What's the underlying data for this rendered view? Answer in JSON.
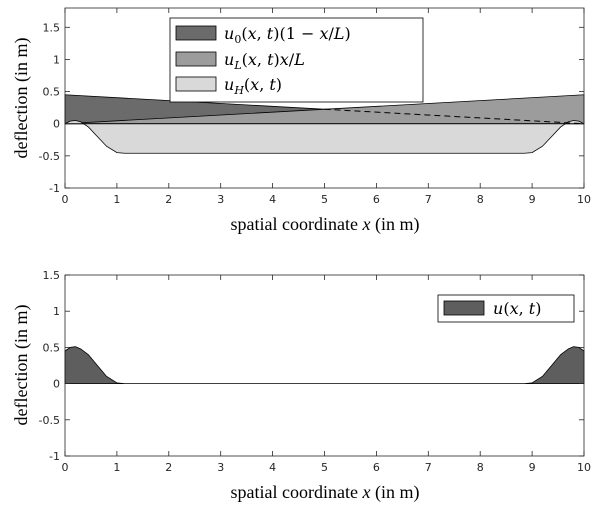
{
  "colors": {
    "u0_fill": "#6b6b6b",
    "uL_fill": "#9c9c9c",
    "uH_fill": "#d9d9d9",
    "u_fill": "#5e5e5e",
    "axis": "#262626",
    "series_line": "#000000"
  },
  "chart_data": [
    {
      "type": "area",
      "xlabel": "spatial coordinate x (in m)",
      "ylabel": "deflection (in m)",
      "xlim": [
        0,
        10
      ],
      "ylim": [
        -1,
        1.8
      ],
      "xticks": [
        "0",
        "1",
        "2",
        "3",
        "4",
        "5",
        "6",
        "7",
        "8",
        "9",
        "10"
      ],
      "yticks": [
        "-1",
        "-0.5",
        "0",
        "0.5",
        "1",
        "1.5"
      ],
      "grid": false,
      "legend_position": "top-center",
      "series": [
        {
          "name": "u0(x,t)(1 − x/L)",
          "legend": "u_0(x,t)(1 − x/L)",
          "x": [
            0,
            10
          ],
          "y": [
            0.45,
            0
          ]
        },
        {
          "name": "uL(x,t)x/L",
          "legend": "u_L(x,t)x/L",
          "x": [
            0,
            10
          ],
          "y": [
            0,
            0.45
          ]
        },
        {
          "name": "uH(x,t)",
          "legend": "u_H(x,t)",
          "x": [
            0,
            0.1,
            0.2,
            0.3,
            0.45,
            0.6,
            0.8,
            1.0,
            1.15,
            1.2,
            8.8,
            8.85,
            9.0,
            9.2,
            9.4,
            9.55,
            9.7,
            9.8,
            9.9,
            10
          ],
          "y": [
            0,
            0.04,
            0.05,
            0.03,
            -0.05,
            -0.18,
            -0.35,
            -0.45,
            -0.46,
            -0.46,
            -0.46,
            -0.46,
            -0.45,
            -0.35,
            -0.18,
            -0.05,
            0.03,
            0.05,
            0.04,
            0
          ]
        }
      ],
      "dashed_line": {
        "x": [
          5.0,
          10
        ],
        "y": [
          0.225,
          0
        ]
      }
    },
    {
      "type": "area",
      "xlabel": "spatial coordinate x (in m)",
      "ylabel": "deflection (in m)",
      "xlim": [
        0,
        10
      ],
      "ylim": [
        -1,
        1.5
      ],
      "xticks": [
        "0",
        "1",
        "2",
        "3",
        "4",
        "5",
        "6",
        "7",
        "8",
        "9",
        "10"
      ],
      "yticks": [
        "-1",
        "-0.5",
        "0",
        "0.5",
        "1",
        "1.5"
      ],
      "grid": false,
      "legend_position": "top-right",
      "series": [
        {
          "name": "u(x,t)",
          "legend": "u(x,t)",
          "x": [
            0,
            0.1,
            0.2,
            0.3,
            0.45,
            0.6,
            0.8,
            1.0,
            1.15,
            1.2,
            8.8,
            8.85,
            9.0,
            9.2,
            9.4,
            9.55,
            9.7,
            9.8,
            9.9,
            10
          ],
          "y": [
            0.45,
            0.5,
            0.51,
            0.48,
            0.4,
            0.27,
            0.1,
            0.01,
            0,
            0,
            0,
            0,
            0.01,
            0.1,
            0.27,
            0.4,
            0.48,
            0.51,
            0.5,
            0.45
          ]
        }
      ]
    }
  ]
}
